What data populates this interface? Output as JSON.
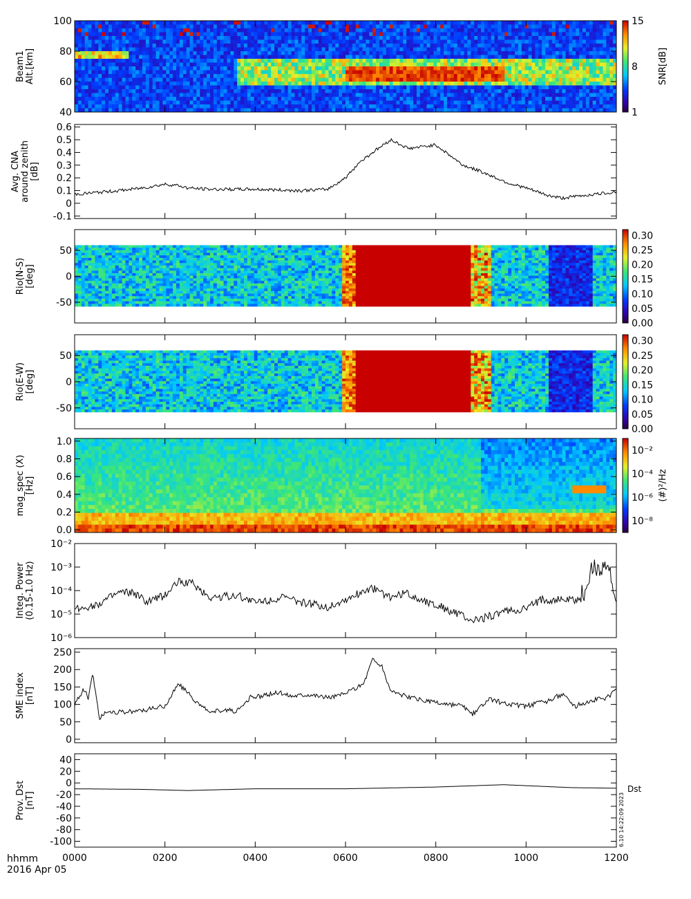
{
  "footer": {
    "time_format": "hhmm",
    "date": "2016 Apr 05",
    "stamp": "6.10 14:22:09 2023"
  },
  "chart_data": [
    {
      "id": "beam1-snr",
      "type": "heatmap",
      "ylabel_lines": [
        "Beam1",
        "Alt.[km]"
      ],
      "ylim": [
        40,
        100
      ],
      "yticks": [
        40,
        60,
        80,
        100
      ],
      "colorbar": {
        "label": "SNR[dB]",
        "ticks": [
          {
            "label": "15",
            "value": 15
          },
          {
            "label": "8",
            "value": 8
          },
          {
            "label": "1",
            "value": 1
          }
        ],
        "range": [
          1,
          15
        ]
      }
    },
    {
      "id": "avg-cna",
      "type": "line",
      "ylabel_lines": [
        "Avg. CNA",
        "around zenith",
        "[dB]"
      ],
      "ylim": [
        -0.12,
        0.62
      ],
      "yticks": [
        -0.1,
        0.0,
        0.1,
        0.2,
        0.3,
        0.4,
        0.5,
        0.6
      ],
      "series": [
        {
          "x": [
            0,
            100,
            150,
            200,
            230,
            250,
            300,
            400,
            500,
            560,
            600,
            630,
            660,
            700,
            740,
            800,
            830,
            860,
            900,
            960,
            1000,
            1050,
            1080,
            1100,
            1150,
            1200
          ],
          "y": [
            0.07,
            0.1,
            0.12,
            0.15,
            0.14,
            0.12,
            0.11,
            0.11,
            0.1,
            0.11,
            0.2,
            0.32,
            0.4,
            0.5,
            0.43,
            0.46,
            0.38,
            0.3,
            0.25,
            0.16,
            0.12,
            0.06,
            0.04,
            0.05,
            0.07,
            0.09
          ]
        }
      ]
    },
    {
      "id": "rio-ns",
      "type": "heatmap",
      "ylabel_lines": [
        "Rio(N-S)",
        "[deg]"
      ],
      "ylim": [
        -90,
        90
      ],
      "yticks": [
        {
          "label": "50",
          "value": 50
        },
        {
          "label": "0",
          "value": 0
        },
        {
          "label": "-50",
          "value": -50
        }
      ],
      "colorbar": {
        "label": "",
        "ticks": [
          {
            "label": "0.30",
            "value": 0.3
          },
          {
            "label": "0.25",
            "value": 0.25
          },
          {
            "label": "0.20",
            "value": 0.2
          },
          {
            "label": "0.15",
            "value": 0.15
          },
          {
            "label": "0.10",
            "value": 0.1
          },
          {
            "label": "0.05",
            "value": 0.05
          },
          {
            "label": "0.00",
            "value": 0
          }
        ],
        "range": [
          0,
          0.32
        ]
      }
    },
    {
      "id": "rio-ew",
      "type": "heatmap",
      "ylabel_lines": [
        "Rio(E-W)",
        "[deg]"
      ],
      "ylim": [
        -90,
        90
      ],
      "yticks": [
        {
          "label": "50",
          "value": 50
        },
        {
          "label": "0",
          "value": 0
        },
        {
          "label": "-50",
          "value": -50
        }
      ],
      "colorbar": {
        "label": "",
        "ticks": [
          {
            "label": "0.30",
            "value": 0.3
          },
          {
            "label": "0.25",
            "value": 0.25
          },
          {
            "label": "0.20",
            "value": 0.2
          },
          {
            "label": "0.15",
            "value": 0.15
          },
          {
            "label": "0.10",
            "value": 0.1
          },
          {
            "label": "0.05",
            "value": 0.05
          },
          {
            "label": "0.00",
            "value": 0
          }
        ],
        "range": [
          0,
          0.32
        ]
      }
    },
    {
      "id": "mag-spec",
      "type": "heatmap",
      "ylabel_lines": [
        "mag_spec (X)",
        "[Hz]"
      ],
      "ylim": [
        -0.03,
        1.03
      ],
      "yticks": [
        {
          "label": "0.0",
          "value": 0
        },
        {
          "label": "0.2",
          "value": 0.2
        },
        {
          "label": "0.4",
          "value": 0.4
        },
        {
          "label": "0.6",
          "value": 0.6
        },
        {
          "label": "0.8",
          "value": 0.8
        },
        {
          "label": "1.0",
          "value": 1.0
        }
      ],
      "colorbar": {
        "label": "(#)²/Hz",
        "ticks": [
          {
            "label": "10⁻²",
            "value": -2
          },
          {
            "label": "10⁻⁴",
            "value": -4
          },
          {
            "label": "10⁻⁶",
            "value": -6
          },
          {
            "label": "10⁻⁸",
            "value": -8
          }
        ],
        "range": [
          -9,
          -1
        ]
      }
    },
    {
      "id": "integ-power",
      "type": "line",
      "ylabel_lines": [
        "Integ. Power",
        "(0.15-1.0 Hz)"
      ],
      "log_y": true,
      "ylim": [
        -6,
        -2
      ],
      "yticks": [
        {
          "label": "10⁻²",
          "value": -2
        },
        {
          "label": "10⁻³",
          "value": -3
        },
        {
          "label": "10⁻⁴",
          "value": -4
        },
        {
          "label": "10⁻⁵",
          "value": -5
        },
        {
          "label": "10⁻⁶",
          "value": -6
        }
      ],
      "series": [
        {
          "x": [
            0,
            50,
            100,
            130,
            160,
            200,
            230,
            260,
            300,
            360,
            400,
            460,
            500,
            560,
            600,
            640,
            660,
            700,
            730,
            770,
            800,
            850,
            880,
            900,
            950,
            1000,
            1030,
            1080,
            1120,
            1140,
            1160,
            1180,
            1200
          ],
          "y": [
            -4.8,
            -4.6,
            -4.1,
            -4.1,
            -4.5,
            -4.2,
            -3.6,
            -3.7,
            -4.3,
            -4.2,
            -4.5,
            -4.3,
            -4.5,
            -4.7,
            -4.4,
            -4.0,
            -3.9,
            -4.3,
            -4.1,
            -4.4,
            -4.6,
            -5.0,
            -5.3,
            -5.2,
            -4.9,
            -4.8,
            -4.4,
            -4.4,
            -4.4,
            -3.4,
            -2.9,
            -3.0,
            -4.5
          ]
        }
      ]
    },
    {
      "id": "sme-index",
      "type": "line",
      "ylabel_lines": [
        "SME index",
        "[nT]"
      ],
      "ylim": [
        -10,
        260
      ],
      "yticks": [
        0,
        50,
        100,
        150,
        200,
        250
      ],
      "series": [
        {
          "x": [
            0,
            20,
            30,
            40,
            55,
            70,
            100,
            130,
            160,
            200,
            230,
            260,
            280,
            300,
            330,
            360,
            390,
            420,
            450,
            480,
            520,
            560,
            600,
            640,
            660,
            680,
            700,
            740,
            780,
            820,
            860,
            880,
            920,
            960,
            1000,
            1050,
            1080,
            1110,
            1140,
            1180,
            1200
          ],
          "y": [
            100,
            145,
            120,
            190,
            60,
            80,
            78,
            80,
            85,
            95,
            160,
            120,
            95,
            75,
            85,
            80,
            120,
            125,
            135,
            125,
            130,
            120,
            130,
            160,
            230,
            210,
            140,
            120,
            110,
            100,
            95,
            70,
            115,
            100,
            95,
            110,
            130,
            95,
            110,
            120,
            140
          ]
        }
      ]
    },
    {
      "id": "prov-dst",
      "type": "line",
      "ylabel_lines": [
        "Prov. Dst",
        "[nT]"
      ],
      "ylim": [
        -110,
        50
      ],
      "yticks": [
        -100,
        -80,
        -60,
        -40,
        -20,
        0,
        20,
        40
      ],
      "legend": "Dst",
      "series": [
        {
          "name": "Dst",
          "x": [
            0,
            150,
            250,
            400,
            600,
            800,
            950,
            1100,
            1200
          ],
          "y": [
            -10,
            -11,
            -13,
            -10,
            -10,
            -7,
            -3,
            -8,
            -9
          ]
        }
      ]
    }
  ],
  "x_axis": {
    "range": [
      0,
      1200
    ],
    "ticks": [
      {
        "label": "0000",
        "value": 0
      },
      {
        "label": "0200",
        "value": 200
      },
      {
        "label": "0400",
        "value": 400
      },
      {
        "label": "0600",
        "value": 600
      },
      {
        "label": "0800",
        "value": 800
      },
      {
        "label": "1000",
        "value": 1000
      },
      {
        "label": "1200",
        "value": 1200
      }
    ]
  }
}
